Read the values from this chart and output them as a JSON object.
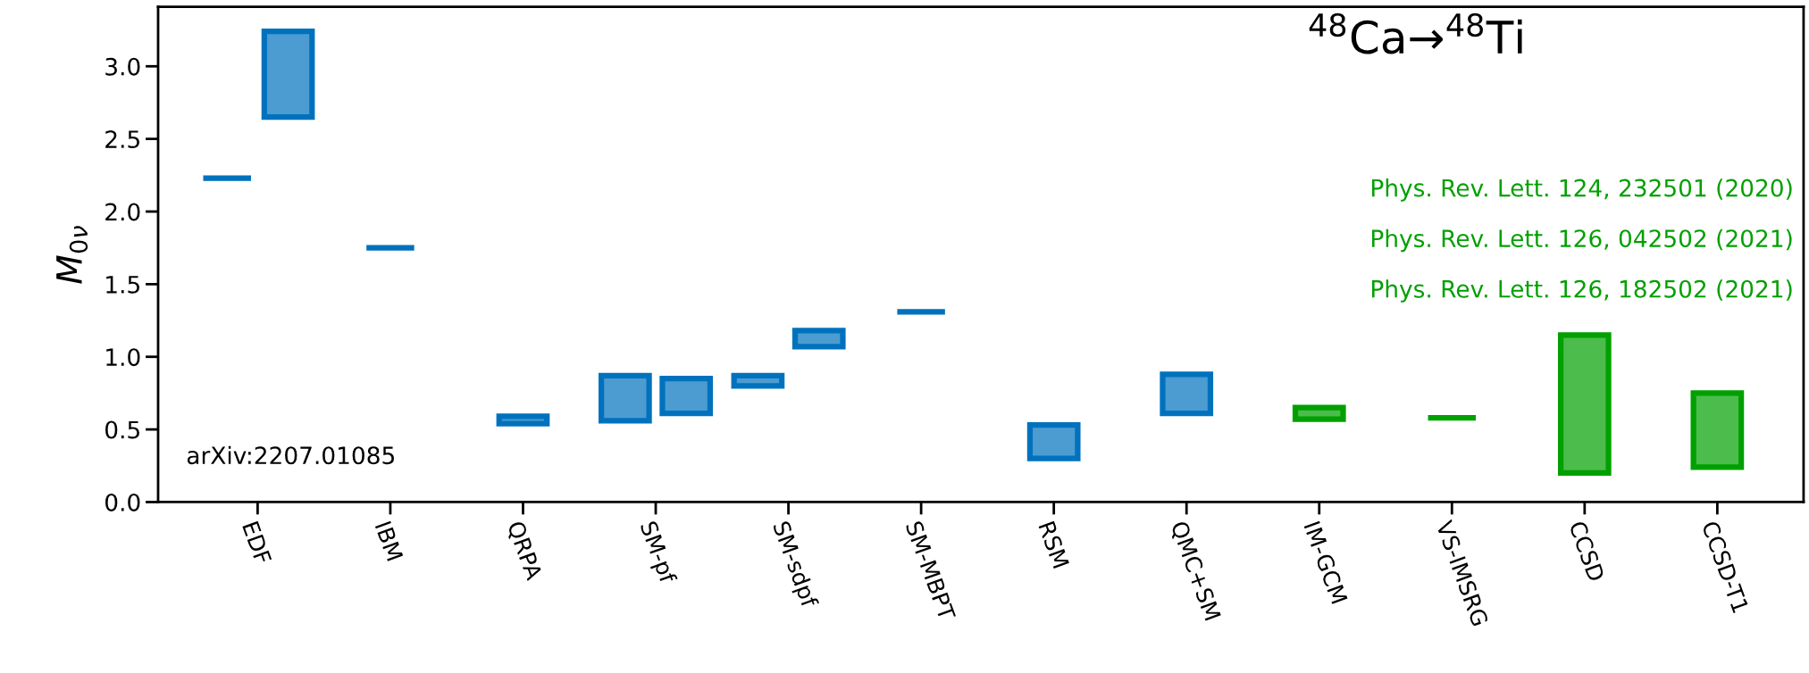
{
  "chart_data": {
    "type": "bar",
    "annotations": [
      "$^{48}$Ca→$^{48}$Ti",
      "arXiv:2207.01085",
      "Phys. Rev. Lett. 124, 232501 (2020)",
      "Phys. Rev. Lett. 126, 042502 (2021)",
      "Phys. Rev. Lett. 126, 182502 (2021)"
    ],
    "ylabel": "M$_{0ν}$",
    "categories": [
      "EDF",
      "IBM",
      "QRPA",
      "SM-pf",
      "SM-sdpf",
      "SM-MBPT",
      "RSM",
      "QMC+SM",
      "IM-GCM",
      "VS-IMSRG",
      "CCSD",
      "CCSD-T1"
    ],
    "series": [
      {
        "color": "#0072bd",
        "base": [
          2.23,
          1.75,
          0.54,
          0.56,
          0.8,
          1.31,
          0.3,
          0.61,
          null,
          null,
          null,
          null
        ],
        "values": [
          0,
          0,
          0.05,
          0.31,
          0.07,
          0,
          0.23,
          0.27,
          null,
          null,
          null,
          null
        ]
      },
      {
        "color": "#0072bd",
        "base": [
          2.65,
          null,
          null,
          0.61,
          1.07,
          null,
          null,
          null,
          null,
          null,
          null,
          null
        ],
        "values": [
          0.59,
          null,
          null,
          0.24,
          0.11,
          null,
          null,
          null,
          null,
          null,
          null,
          null
        ]
      },
      {
        "color": "#00a000",
        "base": [
          null,
          null,
          null,
          null,
          null,
          null,
          null,
          null,
          0.57,
          0.58,
          0.2,
          0.24
        ],
        "values": [
          null,
          null,
          null,
          null,
          null,
          null,
          null,
          null,
          0.08,
          0,
          0.95,
          0.51
        ]
      }
    ],
    "ylim": [
      0,
      3.41
    ],
    "yticks": [
      {
        "value": 0,
        "label": "0.0"
      },
      {
        "value": 0.5,
        "label": "0.5"
      },
      {
        "value": 1.0,
        "label": "1.0"
      },
      {
        "value": 1.5,
        "label": "1.5"
      },
      {
        "value": 2.0,
        "label": "2.0"
      },
      {
        "value": 2.5,
        "label": "2.5"
      },
      {
        "value": 3.0,
        "label": "3.0"
      }
    ],
    "grid": false,
    "legend": false
  }
}
